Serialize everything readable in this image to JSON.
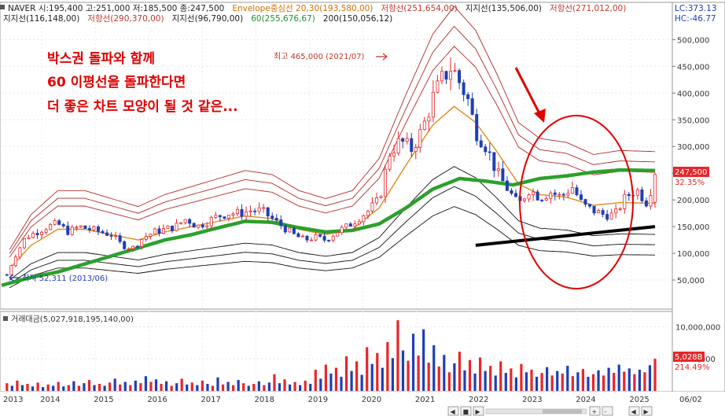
{
  "header": {
    "row1": [
      {
        "text": "NAVER 시:195,400 고:251,000 저:185,500 종:247,500",
        "color": "#222222"
      },
      {
        "text": "Envelope중심선 20,30(193,580,00)",
        "color": "#d07000"
      },
      {
        "text": "저항선(251,654,00)",
        "color": "#c0392b"
      },
      {
        "text": "지지선(135,506,00)",
        "color": "#222222"
      },
      {
        "text": "저항선(271,012,00)",
        "color": "#c0392b"
      }
    ],
    "row2": [
      {
        "text": "지지선(116,148,00)",
        "color": "#222222"
      },
      {
        "text": "저항선(290,370,00)",
        "color": "#c0392b"
      },
      {
        "text": "지지선(96,790,00)",
        "color": "#222222"
      },
      {
        "text": "60(255,676,67)",
        "color": "#1f8f2f"
      },
      {
        "text": "200(150,056,12)",
        "color": "#222222"
      }
    ],
    "lc": "LC:373.13",
    "hc": "HC:-46.77"
  },
  "annotation": {
    "lines": [
      "박스권 돌파와 함께",
      "60 이평선을 돌파한다면",
      "더 좋은 차트 모양이 될 것 같은..."
    ],
    "color": "#e00000"
  },
  "labels": {
    "high": "최고 465,000 (2021/07)",
    "low": "최저 52,311 (2013/06)",
    "volume_title": "거래대금(5,027,918,195,140,00)",
    "date_right": "06/02"
  },
  "price_badge": {
    "value": "247,500",
    "pct": "32.35%"
  },
  "volume_badge": {
    "value": "5,028B",
    "pct": "214.49%"
  },
  "colors": {
    "up": "#e8262a",
    "down": "#1f3fb3",
    "ma60": "#2ca02c",
    "envelope_mid": "#e08a20",
    "resistance": "#b02a2a",
    "support": "#111111"
  },
  "chart_data": {
    "type": "candlestick",
    "price_axis": {
      "ticks": [
        50000,
        100000,
        150000,
        200000,
        250000,
        300000,
        350000,
        400000,
        450000,
        500000
      ],
      "tick_labels": [
        "50,000",
        "100,000",
        "150,000",
        "200,000",
        "250,000",
        "300,000",
        "350,000",
        "400,000",
        "450,000",
        "500,000"
      ],
      "range": [
        0,
        530000
      ]
    },
    "volume_axis": {
      "ticks": [
        10000000,
        5000000
      ],
      "tick_labels": [
        "10,000,000",
        "5,000,000"
      ],
      "range": [
        0,
        12000000
      ]
    },
    "x_axis": {
      "labels": [
        "2013",
        "2014",
        "2015",
        "2016",
        "2017",
        "2018",
        "2019",
        "2020",
        "2021",
        "2022",
        "2023",
        "2024",
        "2025"
      ],
      "start": 2013.25,
      "end": 2025.45
    },
    "close_path": [
      [
        2013.35,
        60000
      ],
      [
        2013.5,
        95000
      ],
      [
        2013.7,
        130000
      ],
      [
        2013.9,
        140000
      ],
      [
        2014.1,
        150000
      ],
      [
        2014.3,
        155000
      ],
      [
        2014.5,
        140000
      ],
      [
        2014.7,
        150000
      ],
      [
        2014.9,
        145000
      ],
      [
        2015.1,
        140000
      ],
      [
        2015.3,
        135000
      ],
      [
        2015.5,
        115000
      ],
      [
        2015.7,
        110000
      ],
      [
        2015.9,
        130000
      ],
      [
        2016.1,
        140000
      ],
      [
        2016.3,
        145000
      ],
      [
        2016.5,
        150000
      ],
      [
        2016.7,
        165000
      ],
      [
        2016.9,
        150000
      ],
      [
        2017.1,
        160000
      ],
      [
        2017.3,
        170000
      ],
      [
        2017.5,
        175000
      ],
      [
        2017.7,
        175000
      ],
      [
        2017.9,
        180000
      ],
      [
        2018.1,
        180000
      ],
      [
        2018.3,
        165000
      ],
      [
        2018.5,
        150000
      ],
      [
        2018.7,
        135000
      ],
      [
        2018.9,
        125000
      ],
      [
        2019.1,
        130000
      ],
      [
        2019.3,
        125000
      ],
      [
        2019.5,
        140000
      ],
      [
        2019.7,
        150000
      ],
      [
        2019.9,
        165000
      ],
      [
        2020.1,
        180000
      ],
      [
        2020.3,
        200000
      ],
      [
        2020.5,
        290000
      ],
      [
        2020.7,
        310000
      ],
      [
        2020.9,
        295000
      ],
      [
        2021.1,
        330000
      ],
      [
        2021.3,
        390000
      ],
      [
        2021.5,
        430000
      ],
      [
        2021.65,
        450000
      ],
      [
        2021.8,
        420000
      ],
      [
        2021.95,
        390000
      ],
      [
        2022.1,
        330000
      ],
      [
        2022.3,
        300000
      ],
      [
        2022.5,
        250000
      ],
      [
        2022.7,
        220000
      ],
      [
        2022.9,
        190000
      ],
      [
        2023.1,
        220000
      ],
      [
        2023.3,
        205000
      ],
      [
        2023.5,
        215000
      ],
      [
        2023.7,
        205000
      ],
      [
        2023.9,
        225000
      ],
      [
        2024.1,
        190000
      ],
      [
        2024.3,
        180000
      ],
      [
        2024.5,
        172000
      ],
      [
        2024.7,
        172000
      ],
      [
        2024.9,
        205000
      ],
      [
        2025.1,
        220000
      ],
      [
        2025.3,
        195000
      ],
      [
        2025.45,
        247500
      ]
    ],
    "ma60_path": [
      [
        2013.25,
        40000
      ],
      [
        2013.8,
        55000
      ],
      [
        2014.3,
        65000
      ],
      [
        2014.8,
        80000
      ],
      [
        2015.3,
        95000
      ],
      [
        2015.8,
        110000
      ],
      [
        2016.3,
        125000
      ],
      [
        2016.8,
        135000
      ],
      [
        2017.3,
        148000
      ],
      [
        2017.8,
        160000
      ],
      [
        2018.3,
        158000
      ],
      [
        2018.8,
        148000
      ],
      [
        2019.3,
        140000
      ],
      [
        2019.8,
        143000
      ],
      [
        2020.3,
        155000
      ],
      [
        2020.8,
        185000
      ],
      [
        2021.3,
        220000
      ],
      [
        2021.8,
        240000
      ],
      [
        2022.3,
        235000
      ],
      [
        2022.8,
        228000
      ],
      [
        2023.3,
        240000
      ],
      [
        2023.8,
        245000
      ],
      [
        2024.3,
        252000
      ],
      [
        2024.8,
        256000
      ],
      [
        2025.45,
        255000
      ]
    ],
    "envelope_mid_path": [
      [
        2013.25,
        55000
      ],
      [
        2013.8,
        115000
      ],
      [
        2014.3,
        145000
      ],
      [
        2014.8,
        145000
      ],
      [
        2015.3,
        135000
      ],
      [
        2015.8,
        125000
      ],
      [
        2016.3,
        140000
      ],
      [
        2016.8,
        150000
      ],
      [
        2017.3,
        160000
      ],
      [
        2017.8,
        170000
      ],
      [
        2018.3,
        165000
      ],
      [
        2018.8,
        145000
      ],
      [
        2019.3,
        135000
      ],
      [
        2019.8,
        145000
      ],
      [
        2020.3,
        185000
      ],
      [
        2020.8,
        265000
      ],
      [
        2021.3,
        340000
      ],
      [
        2021.7,
        375000
      ],
      [
        2022.1,
        345000
      ],
      [
        2022.5,
        290000
      ],
      [
        2022.9,
        230000
      ],
      [
        2023.3,
        210000
      ],
      [
        2023.8,
        205000
      ],
      [
        2024.3,
        190000
      ],
      [
        2024.8,
        195000
      ],
      [
        2025.45,
        193580
      ]
    ],
    "trendline": [
      [
        2022.1,
        115000
      ],
      [
        2025.45,
        150000
      ]
    ],
    "volume_bars": [
      1.2,
      0.8,
      1.6,
      0.9,
      1.1,
      0.7,
      1.3,
      0.6,
      1.0,
      0.8,
      1.4,
      0.7,
      0.9,
      1.5,
      0.8,
      1.2,
      1.7,
      0.9,
      1.1,
      0.8,
      1.3,
      1.9,
      1.0,
      1.4,
      0.9,
      1.6,
      1.2,
      2.3,
      1.4,
      1.8,
      1.1,
      1.5,
      0.8,
      1.2,
      1.9,
      1.0,
      1.3,
      0.9,
      1.6,
      1.1,
      0.8,
      2.1,
      1.0,
      1.4,
      0.9,
      1.7,
      1.2,
      0.8,
      1.1,
      1.5,
      0.9,
      1.3,
      2.6,
      1.2,
      1.8,
      1.0,
      1.4,
      0.9,
      1.6,
      1.1,
      3.3,
      1.9,
      4.1,
      2.7,
      3.6,
      2.2,
      5.4,
      3.1,
      4.6,
      2.5,
      6.8,
      4.2,
      5.9,
      3.6,
      7.6,
      5.1,
      11.0,
      6.3,
      4.7,
      8.9,
      5.5,
      9.6,
      4.4,
      7.1,
      3.8,
      5.6,
      2.9,
      4.3,
      6.1,
      3.2,
      4.8,
      2.7,
      5.2,
      3.1,
      3.9,
      2.4,
      4.6,
      2.8,
      3.5,
      2.1,
      4.2,
      2.9,
      3.3,
      2.2,
      2.8,
      3.7,
      2.4,
      3.1,
      2.7,
      3.9,
      2.3,
      2.9,
      3.4,
      2.2,
      2.6,
      3.2,
      2.4,
      3.6,
      2.8,
      4.1,
      3.0,
      3.5,
      2.6,
      3.3,
      2.9,
      4.0,
      5.0
    ]
  },
  "toolbar": {
    "buttons": [
      "◀",
      "■",
      "▶",
      "+",
      "-",
      "◀",
      "▶"
    ]
  }
}
